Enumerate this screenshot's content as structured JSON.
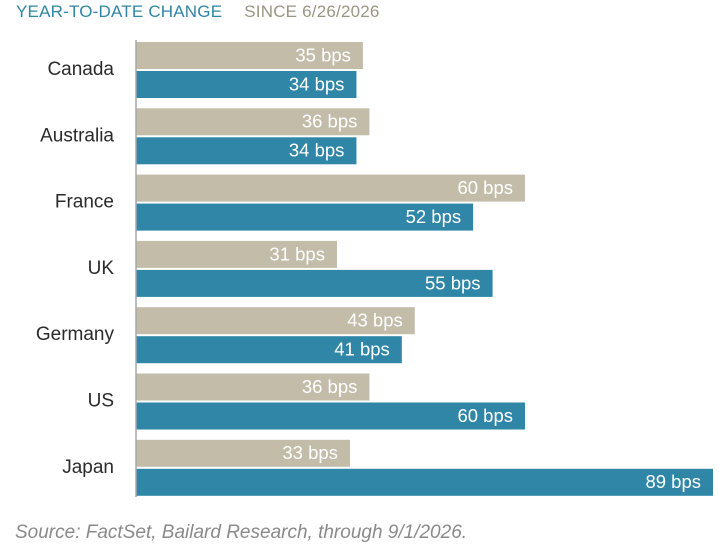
{
  "legend": {
    "ytd_label": "YEAR-TO-DATE CHANGE",
    "since_label": "SINCE 6/26/2026"
  },
  "colors": {
    "ytd": "#2f86a6",
    "since": "#c2bca9",
    "axis": "#a7a7a7"
  },
  "source": "Source: FactSet, Bailard Research, through 9/1/2026.",
  "chart_data": {
    "type": "bar",
    "orientation": "horizontal",
    "categories": [
      "Canada",
      "Australia",
      "France",
      "UK",
      "Germany",
      "US",
      "Japan"
    ],
    "series": [
      {
        "name": "SINCE 6/26/2026",
        "values": [
          35,
          36,
          60,
          31,
          43,
          36,
          33
        ],
        "labels": [
          "35 bps",
          "36 bps",
          "60 bps",
          "31 bps",
          "43 bps",
          "36 bps",
          "33 bps"
        ]
      },
      {
        "name": "YEAR-TO-DATE CHANGE",
        "values": [
          34,
          34,
          52,
          55,
          41,
          60,
          89
        ],
        "labels": [
          "34 bps",
          "34 bps",
          "52 bps",
          "55 bps",
          "41 bps",
          "60 bps",
          "89 bps"
        ]
      }
    ],
    "unit": "bps",
    "xlim": [
      0,
      89
    ],
    "grid": false,
    "legend_position": "top-left"
  }
}
